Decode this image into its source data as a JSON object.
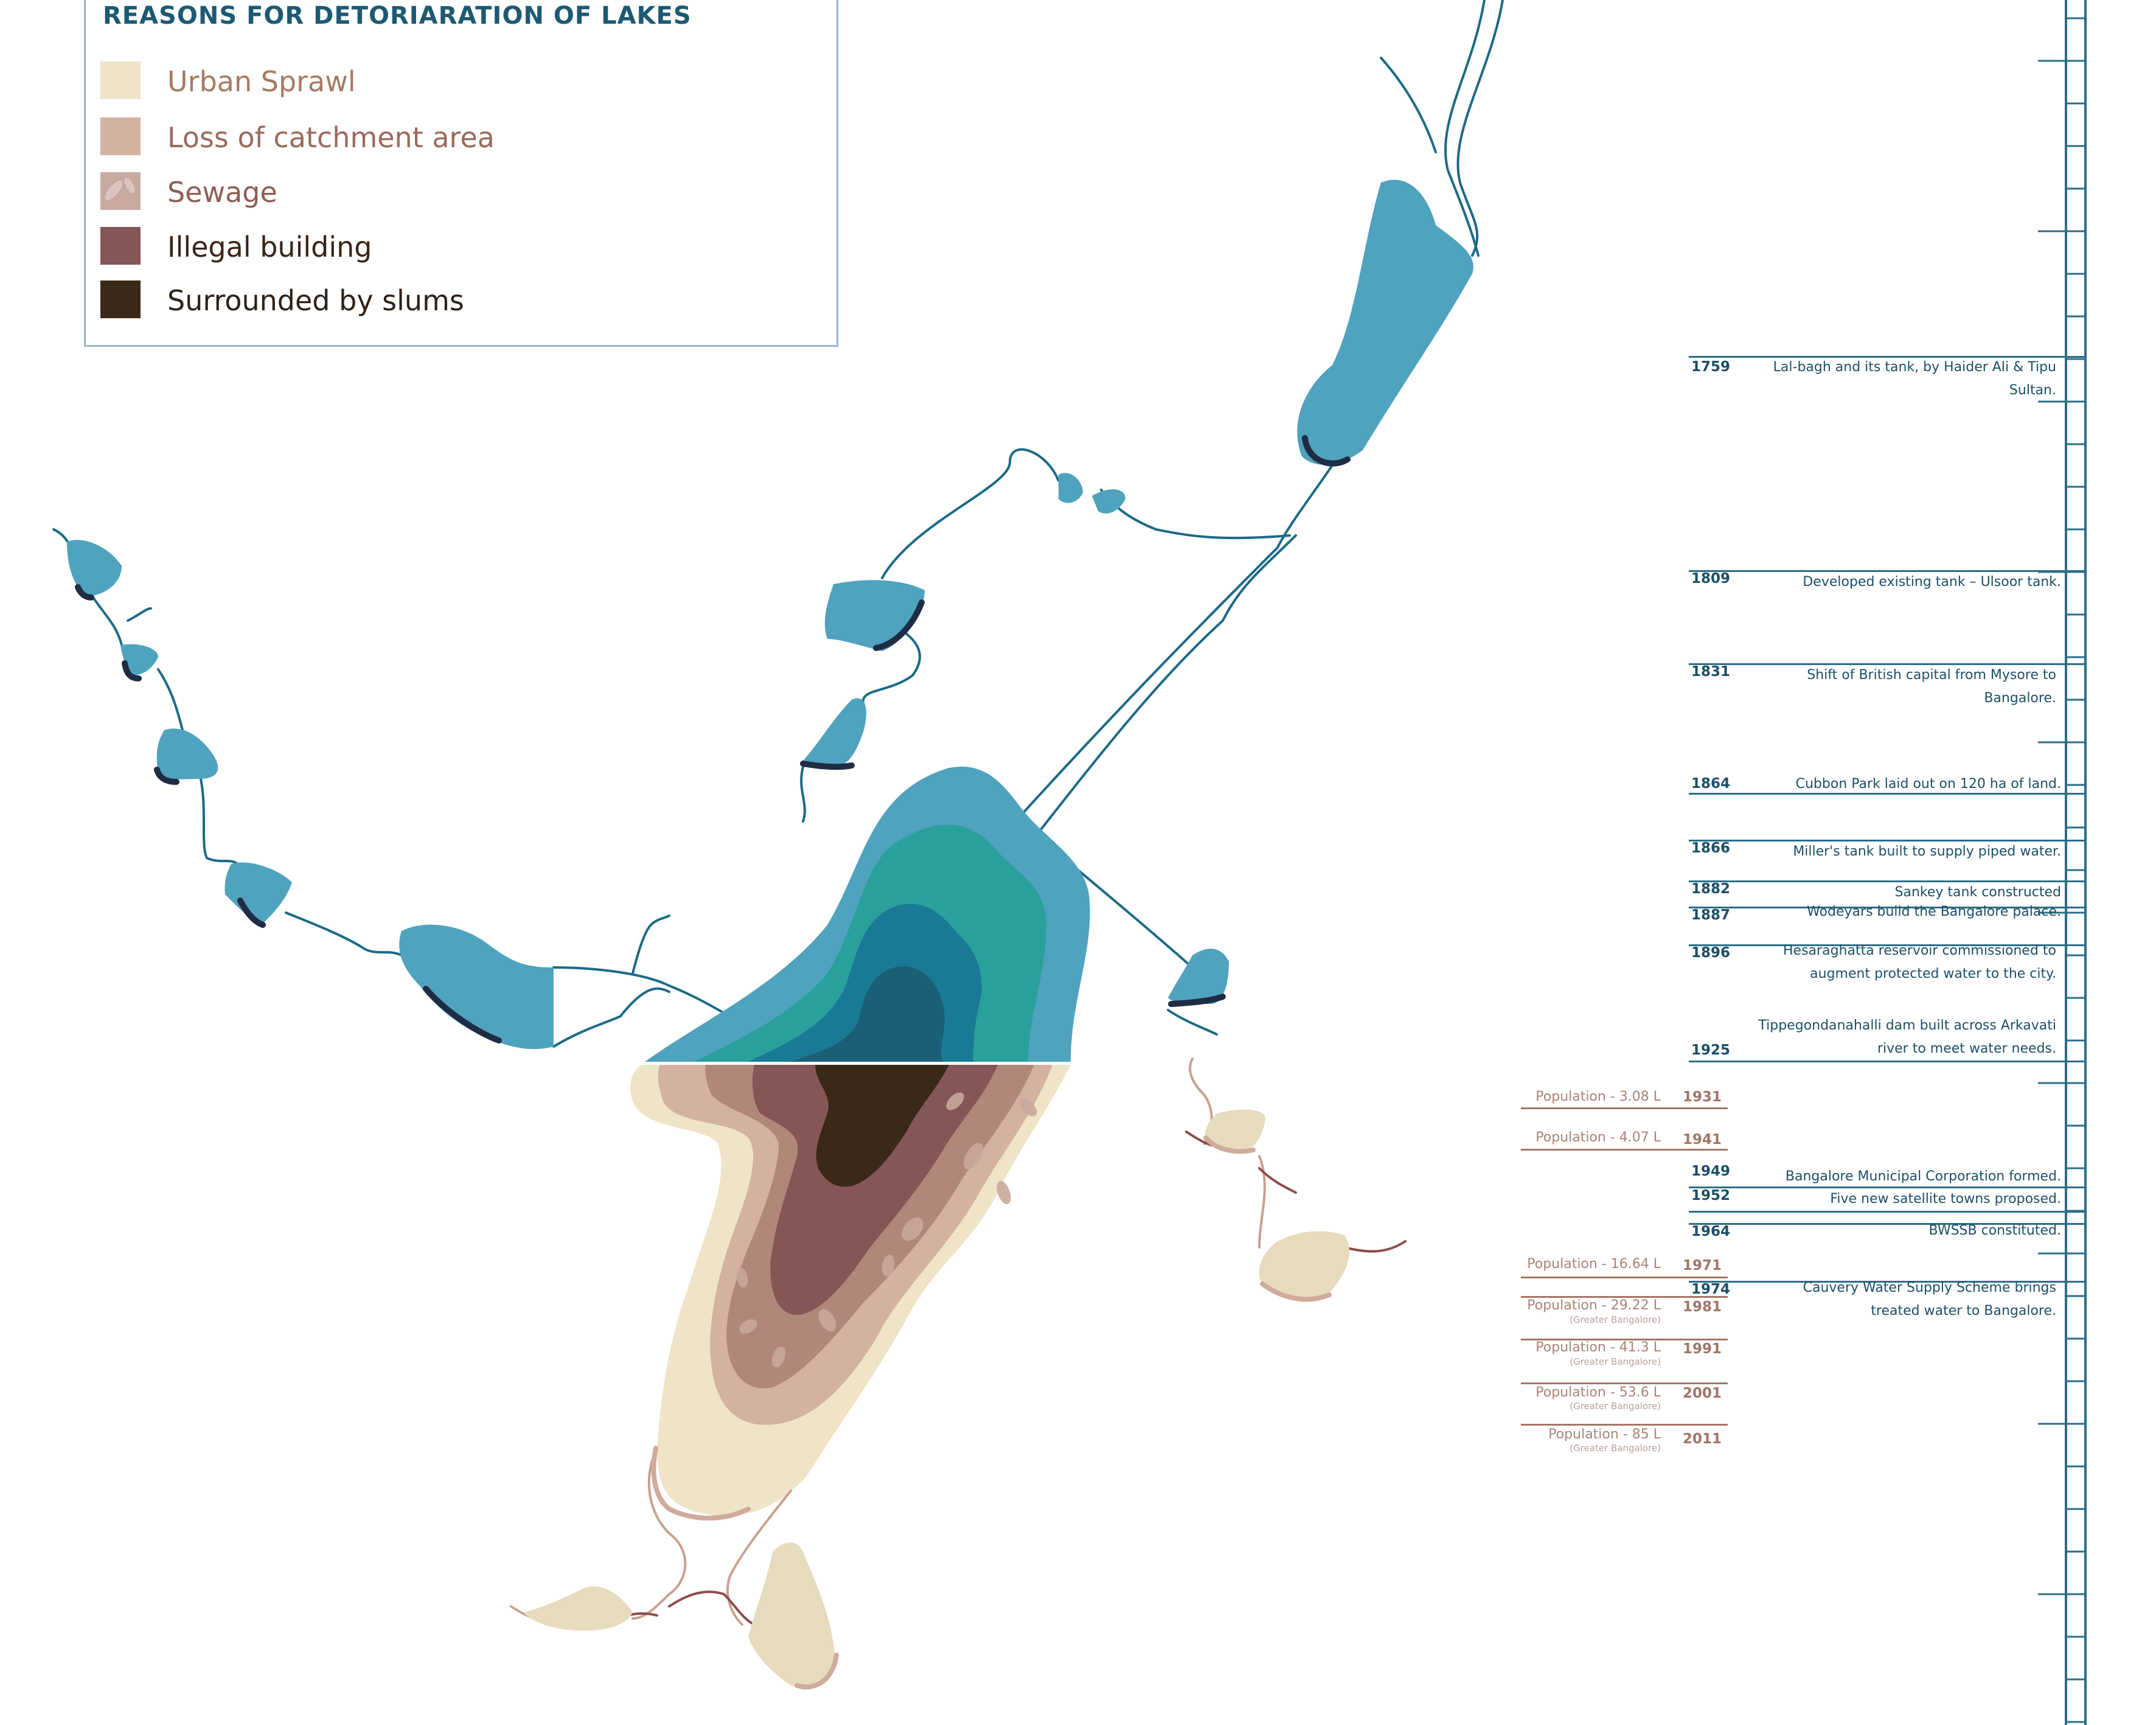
{
  "legend": {
    "title": "REASONS FOR DETORIARATION OF LAKES",
    "items": [
      {
        "label": "Urban Sprawl",
        "color": "#efe4c8",
        "text_color": "#a57a63"
      },
      {
        "label": "Loss of catchment area",
        "color": "#d3b2a0",
        "text_color": "#9a6a5c"
      },
      {
        "label": "Sewage",
        "color": "#c7a99f",
        "text_color": "#8d5f56"
      },
      {
        "label": "Illegal building",
        "color": "#865555",
        "text_color": "#3a2418"
      },
      {
        "label": "Surrounded by slums",
        "color": "#3a2818",
        "text_color": "#2e2118"
      }
    ]
  },
  "timeline": {
    "events": [
      {
        "year": "1759",
        "text": "Lal-bagh and its tank, by Haider Ali & Tipu Sultan."
      },
      {
        "year": "1809",
        "text": "Developed existing tank – Ulsoor tank."
      },
      {
        "year": "1831",
        "text": "Shift of British capital from Mysore to Bangalore."
      },
      {
        "year": "1864",
        "text": "Cubbon Park laid out on 120 ha of land."
      },
      {
        "year": "1866",
        "text": "Miller's tank built to supply piped water."
      },
      {
        "year": "1882",
        "text": "Sankey tank constructed"
      },
      {
        "year": "1887",
        "text": "Wodeyars build the Bangalore palace."
      },
      {
        "year": "1896",
        "text": "Hesaraghatta reservoir commissioned to augment protected water to the city."
      },
      {
        "year": "1925",
        "text": "Tippegondanahalli dam built across Arkavati river to meet water needs."
      },
      {
        "year": "1949",
        "text": "Bangalore Municipal Corporation formed."
      },
      {
        "year": "1952",
        "text": "Five new satellite towns proposed."
      },
      {
        "year": "1964",
        "text": "BWSSB constituted."
      },
      {
        "year": "1974",
        "text": "Cauvery Water Supply Scheme brings treated water to Bangalore."
      }
    ],
    "population": [
      {
        "year": "1931",
        "label": "Population - 3.08 L",
        "sub": ""
      },
      {
        "year": "1941",
        "label": "Population - 4.07 L",
        "sub": ""
      },
      {
        "year": "1971",
        "label": "Population - 16.64 L",
        "sub": ""
      },
      {
        "year": "1981",
        "label": "Population - 29.22 L",
        "sub": "(Greater Bangalore)"
      },
      {
        "year": "1991",
        "label": "Population - 41.3 L",
        "sub": "(Greater Bangalore)"
      },
      {
        "year": "2001",
        "label": "Population - 53.6 L",
        "sub": "(Greater Bangalore)"
      },
      {
        "year": "2011",
        "label": "Population - 85 L",
        "sub": "(Greater Bangalore)"
      }
    ]
  },
  "colors": {
    "lake": "#4fa3be",
    "lake_mid": "#2aa09c",
    "lake_deep": "#1a7a96",
    "lake_deepest": "#1b5f77",
    "lake_edge": "#1f2d44",
    "stream": "#1b6a86",
    "sprawl": "#efe4c8",
    "dry_stream": "#c9a08f"
  }
}
